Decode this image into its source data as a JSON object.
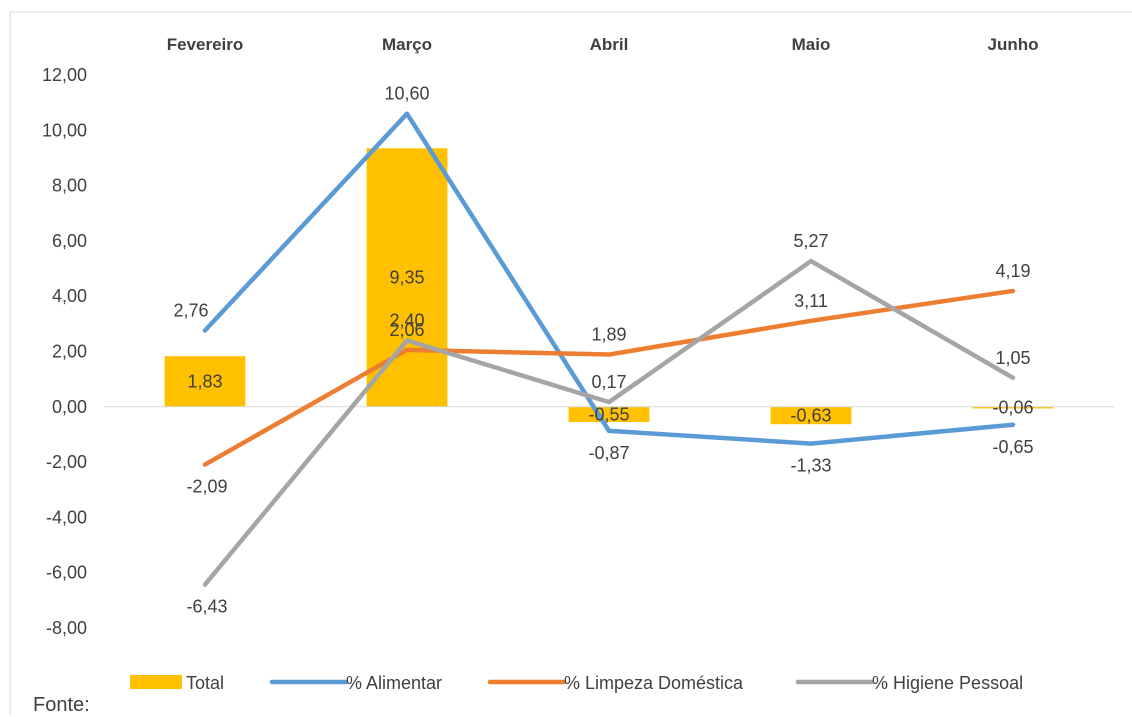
{
  "chart_data": {
    "type": "bar",
    "categories": [
      "Fevereiro",
      "Março",
      "Abril",
      "Maio",
      "Junho"
    ],
    "y_ticks": [
      "12,00",
      "10,00",
      "8,00",
      "6,00",
      "4,00",
      "2,00",
      "0,00",
      "-2,00",
      "-4,00",
      "-6,00",
      "-8,00"
    ],
    "y_tick_values": [
      12,
      10,
      8,
      6,
      4,
      2,
      0,
      -2,
      -4,
      -6,
      -8
    ],
    "ylim": [
      -8,
      12
    ],
    "grid": false,
    "legend_position": "bottom",
    "series": [
      {
        "name": "Total",
        "kind": "bar",
        "color": "#FFC000",
        "values": [
          1.83,
          9.35,
          -0.55,
          -0.63,
          -0.06
        ],
        "labels": [
          "1,83",
          "9,35",
          "-0,55",
          "-0,63",
          "-0,06"
        ]
      },
      {
        "name": "% Alimentar",
        "kind": "line",
        "color": "#5B9BD5",
        "values": [
          2.76,
          10.6,
          -0.87,
          -1.33,
          -0.65
        ],
        "labels": [
          "2,76",
          "10,60",
          "-0,87",
          "-1,33",
          "-0,65"
        ]
      },
      {
        "name": "% Limpeza Doméstica",
        "kind": "line",
        "color": "#ED7D31",
        "values": [
          -2.09,
          2.06,
          1.89,
          3.11,
          4.19
        ],
        "labels": [
          "-2,09",
          "2,06",
          "1,89",
          "3,11",
          "4,19"
        ]
      },
      {
        "name": "% Higiene Pessoal",
        "kind": "line",
        "color": "#A5A5A5",
        "values": [
          -6.43,
          2.4,
          0.17,
          5.27,
          1.05
        ],
        "labels": [
          "-6,43",
          "2,40",
          "0,17",
          "5,27",
          "1,05"
        ]
      }
    ]
  },
  "source": "Fonte:"
}
